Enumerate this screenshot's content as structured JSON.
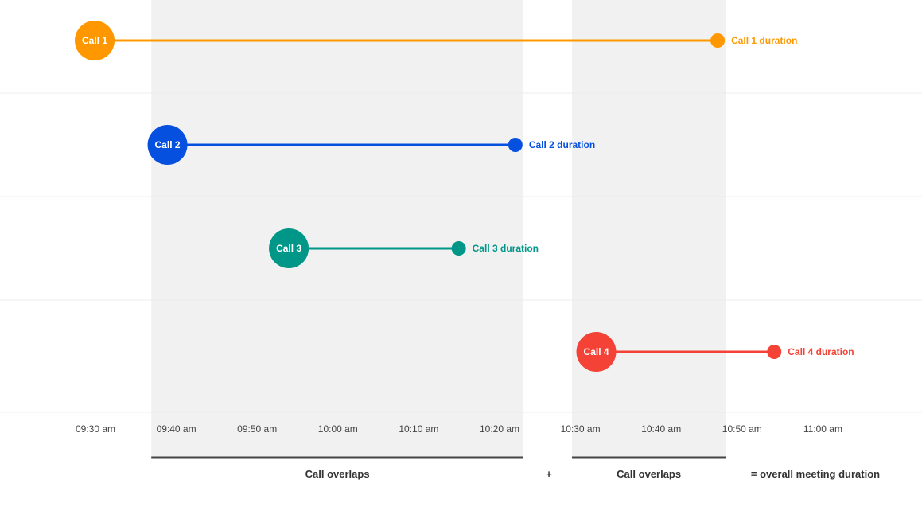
{
  "chart_data": {
    "type": "timeline",
    "x_axis": {
      "ticks": [
        "09:30 am",
        "09:40 am",
        "09:50 am",
        "10:00 am",
        "10:10 am",
        "10:20 am",
        "10:30 am",
        "10:40 am",
        "10:50 am",
        "11:00 am"
      ],
      "range": [
        "09:30",
        "11:00"
      ]
    },
    "grid": true,
    "series": [
      {
        "name": "Call 1",
        "end_label": "Call 1 duration",
        "start": "09:30",
        "end": "10:47",
        "color": "#FF9800"
      },
      {
        "name": "Call 2",
        "end_label": "Call 2 duration",
        "start": "09:39",
        "end": "10:22",
        "color": "#0650DF"
      },
      {
        "name": "Call 3",
        "end_label": "Call 3 duration",
        "start": "09:54",
        "end": "10:15",
        "color": "#009688"
      },
      {
        "name": "Call 4",
        "end_label": "Call 4 duration",
        "start": "10:32",
        "end": "10:54",
        "color": "#F44336"
      }
    ],
    "overlap_regions": [
      {
        "label": "Call overlaps",
        "start": "09:37",
        "end": "10:23"
      },
      {
        "label": "Call overlaps",
        "start": "10:29",
        "end": "10:48"
      }
    ],
    "annotations": {
      "plus": "+",
      "total": "= overall meeting duration"
    }
  }
}
